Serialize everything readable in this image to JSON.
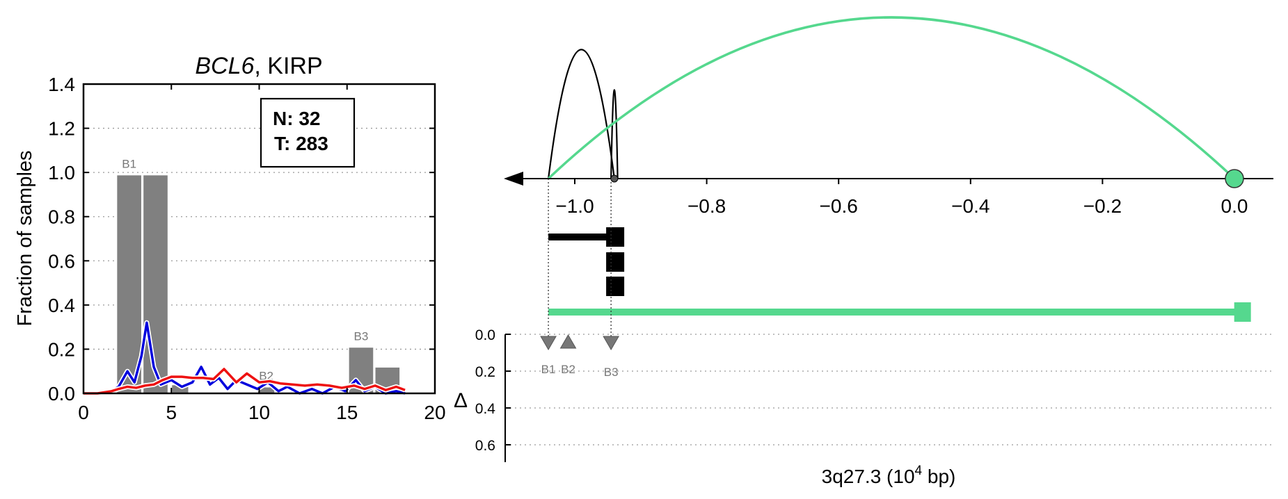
{
  "colors": {
    "bar": "#808080",
    "normal_line": "#0000dd",
    "tumor_line": "#ee1111",
    "green": "#55d88e",
    "black": "#000000",
    "grid": "#999999",
    "marker": "#777777"
  },
  "left_panel": {
    "title_gene": "BCL6",
    "title_rest": ", KIRP",
    "ylabel": "Fraction of samples",
    "legend_box": {
      "n_text": "N: 32",
      "t_text": "T: 283"
    }
  },
  "right_panel": {
    "xlabel_prefix": "3q27.3 (10",
    "xlabel_exp": "4",
    "xlabel_suffix": " bp)",
    "delta_label": "Δ",
    "tick_labels": [
      "−1.0",
      "−0.8",
      "−0.6",
      "−0.4",
      "−0.2",
      "0.0"
    ],
    "delta_tick_labels": [
      "0.0",
      "0.2",
      "0.4",
      "0.6"
    ],
    "markers": [
      {
        "label": "B1",
        "pos": -1.04,
        "shape": "down"
      },
      {
        "label": "B2",
        "pos": -1.01,
        "shape": "up"
      },
      {
        "label": "B3",
        "pos": -0.945,
        "shape": "down"
      }
    ]
  },
  "chart_data": [
    {
      "type": "bar",
      "title": "BCL6, KIRP",
      "xlabel": "",
      "ylabel": "Fraction of samples",
      "xlim": [
        0,
        20
      ],
      "ylim": [
        0,
        1.4
      ],
      "xticks": [
        0,
        5,
        10,
        15,
        20
      ],
      "yticks": [
        0.0,
        0.2,
        0.4,
        0.6,
        0.8,
        1.0,
        1.2,
        1.4
      ],
      "grid": "y-dotted",
      "bars": [
        {
          "x": 2.6,
          "width": 1.45,
          "value": 0.99,
          "label": "B1"
        },
        {
          "x": 4.1,
          "width": 1.45,
          "value": 0.99,
          "label": ""
        },
        {
          "x": 5.5,
          "width": 1.0,
          "value": 0.04,
          "label": ""
        },
        {
          "x": 10.4,
          "width": 1.0,
          "value": 0.03,
          "label": "B2"
        },
        {
          "x": 15.8,
          "width": 1.45,
          "value": 0.21,
          "label": "B3"
        },
        {
          "x": 17.3,
          "width": 1.45,
          "value": 0.12,
          "label": ""
        }
      ],
      "series": [
        {
          "color_key": "normal_line",
          "x": [
            0,
            0.8,
            1.6,
            2.0,
            2.5,
            2.9,
            3.3,
            3.6,
            4.0,
            4.4,
            5.0,
            5.6,
            6.2,
            6.7,
            7.2,
            7.7,
            8.2,
            8.7,
            9.3,
            9.9,
            10.5,
            11.1,
            11.6,
            12.3,
            13.0,
            13.6,
            14.3,
            14.9,
            15.5,
            16.0,
            16.6,
            17.2,
            17.8,
            18.3
          ],
          "y": [
            0,
            0,
            0.01,
            0.03,
            0.1,
            0.05,
            0.17,
            0.32,
            0.12,
            0.04,
            0.06,
            0.03,
            0.05,
            0.12,
            0.04,
            0.07,
            0.02,
            0.06,
            0.04,
            0.02,
            0.05,
            0.01,
            0.03,
            0.0,
            0.02,
            0.0,
            0.03,
            0.01,
            0.06,
            0.01,
            0.03,
            0.0,
            0.01,
            0.0
          ]
        },
        {
          "color_key": "tumor_line",
          "x": [
            0,
            0.8,
            1.6,
            2.0,
            2.5,
            3.0,
            3.5,
            4.0,
            4.5,
            5.0,
            5.6,
            6.2,
            6.8,
            7.4,
            8.0,
            8.7,
            9.3,
            10.0,
            10.6,
            11.2,
            11.9,
            12.6,
            13.3,
            14.0,
            14.7,
            15.4,
            16.0,
            16.6,
            17.2,
            17.8,
            18.3
          ],
          "y": [
            0,
            0,
            0.01,
            0.02,
            0.03,
            0.025,
            0.035,
            0.04,
            0.06,
            0.075,
            0.075,
            0.07,
            0.07,
            0.065,
            0.11,
            0.05,
            0.09,
            0.05,
            0.055,
            0.045,
            0.04,
            0.035,
            0.04,
            0.035,
            0.025,
            0.035,
            0.02,
            0.035,
            0.015,
            0.03,
            0.015
          ]
        }
      ]
    },
    {
      "type": "line",
      "title": "",
      "xlabel": "3q27.3 (10^4 bp)",
      "ylabel": "",
      "xlim": [
        -1.15,
        0.05
      ],
      "xticks": [
        -1.0,
        -0.8,
        -0.6,
        -0.4,
        -0.2,
        0.0
      ],
      "arcs": [
        {
          "from": -1.04,
          "to": -0.94,
          "peak_height": 0.8,
          "color_key": "black"
        },
        {
          "from": -0.945,
          "to": -0.935,
          "peak_height": 0.55,
          "color_key": "black"
        },
        {
          "from": -1.04,
          "to": 0.0,
          "peak_height": 1.0,
          "color_key": "green"
        }
      ],
      "features": [
        {
          "start": -1.04,
          "end": -0.925,
          "color_key": "black"
        },
        {
          "start": -0.94,
          "end": -0.925,
          "color_key": "black"
        },
        {
          "start": -0.94,
          "end": -0.925,
          "color_key": "black"
        },
        {
          "start": -1.04,
          "end": 0.025,
          "color_key": "green"
        }
      ],
      "delta_ylim": [
        0.0,
        0.7
      ],
      "delta_yticks": [
        0.0,
        0.2,
        0.4,
        0.6
      ]
    }
  ]
}
